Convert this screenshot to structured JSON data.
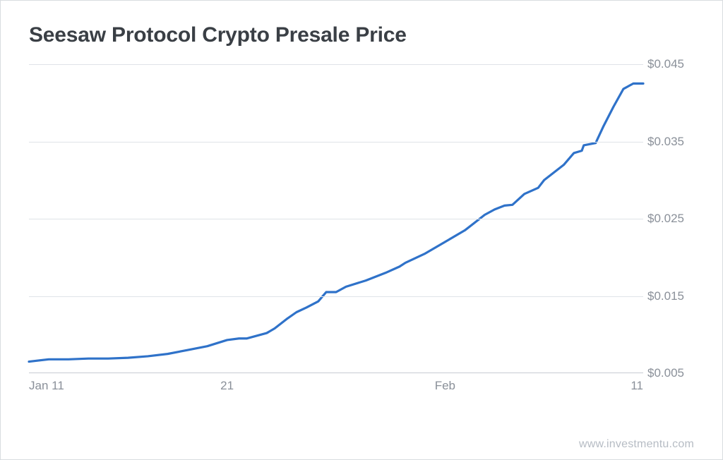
{
  "chart": {
    "type": "line",
    "title": "Seesaw Protocol Crypto Presale Price",
    "title_fontsize": 30,
    "title_color": "#3a3f45",
    "background_color": "#ffffff",
    "border_color": "#d9dce0",
    "grid_color": "#dfe3e8",
    "baseline_color": "#c7ccd2",
    "line_color": "#2f72c9",
    "line_width": 3.2,
    "axis_label_color": "#8a9099",
    "axis_label_fontsize": 17,
    "y": {
      "min": 0.005,
      "max": 0.045,
      "ticks": [
        0.005,
        0.015,
        0.025,
        0.035,
        0.045
      ],
      "tick_labels": [
        "$0.005",
        "$0.015",
        "$0.025",
        "$0.035",
        "$0.045"
      ]
    },
    "x": {
      "min": 0,
      "max": 31,
      "ticks": [
        0,
        10,
        21,
        31
      ],
      "tick_labels": [
        "Jan 11",
        "21",
        "Feb",
        "11"
      ]
    },
    "series": [
      {
        "name": "price",
        "points": [
          [
            0,
            0.0065
          ],
          [
            1,
            0.0068
          ],
          [
            2,
            0.0068
          ],
          [
            3,
            0.0069
          ],
          [
            4,
            0.0069
          ],
          [
            5,
            0.007
          ],
          [
            6,
            0.0072
          ],
          [
            7,
            0.0075
          ],
          [
            8,
            0.008
          ],
          [
            9,
            0.0085
          ],
          [
            10,
            0.0093
          ],
          [
            10.6,
            0.0095
          ],
          [
            11,
            0.0095
          ],
          [
            12,
            0.0102
          ],
          [
            12.4,
            0.0108
          ],
          [
            13,
            0.012
          ],
          [
            13.5,
            0.0129
          ],
          [
            14,
            0.0135
          ],
          [
            14.6,
            0.0143
          ],
          [
            15,
            0.0155
          ],
          [
            15.5,
            0.0155
          ],
          [
            16,
            0.0162
          ],
          [
            17,
            0.017
          ],
          [
            18,
            0.018
          ],
          [
            18.7,
            0.0188
          ],
          [
            19,
            0.0193
          ],
          [
            20,
            0.0205
          ],
          [
            21,
            0.022
          ],
          [
            22,
            0.0235
          ],
          [
            22.5,
            0.0245
          ],
          [
            23,
            0.0255
          ],
          [
            23.5,
            0.0262
          ],
          [
            24,
            0.0267
          ],
          [
            24.4,
            0.0268
          ],
          [
            25,
            0.0282
          ],
          [
            25.7,
            0.029
          ],
          [
            26,
            0.03
          ],
          [
            26.6,
            0.0312
          ],
          [
            27,
            0.032
          ],
          [
            27.5,
            0.0335
          ],
          [
            27.9,
            0.0338
          ],
          [
            28,
            0.0345
          ],
          [
            28.6,
            0.0348
          ],
          [
            29,
            0.037
          ],
          [
            29.5,
            0.0395
          ],
          [
            30,
            0.0418
          ],
          [
            30.5,
            0.0425
          ],
          [
            31,
            0.0425
          ]
        ]
      }
    ]
  },
  "watermark": "www.investmentu.com",
  "watermark_color": "#b6bcc4"
}
